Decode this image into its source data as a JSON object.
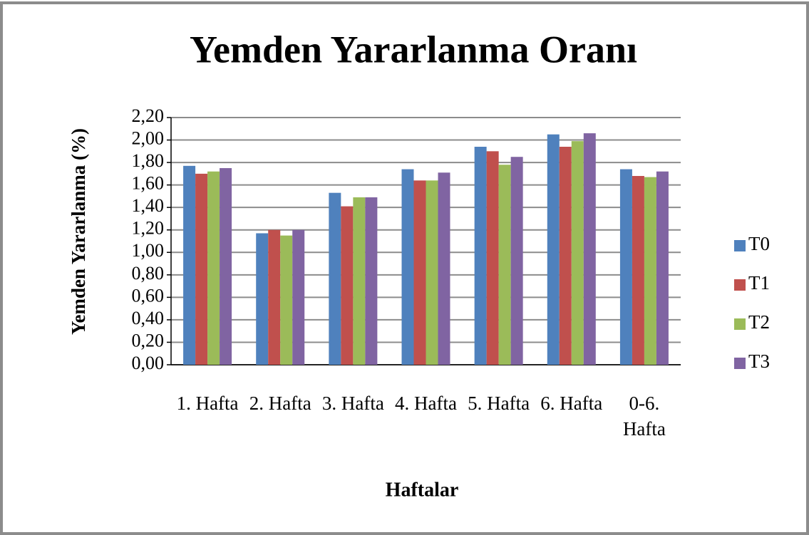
{
  "chart_data": {
    "type": "bar",
    "title": "Yemden Yararlanma Oranı",
    "x_label": "Haftalar",
    "y_label": "Yemden Yararlanma (%)",
    "categories": [
      "1. Hafta",
      "2. Hafta",
      "3. Hafta",
      "4. Hafta",
      "5. Hafta",
      "6. Hafta",
      "0-6. Hafta"
    ],
    "series": [
      {
        "name": "T0",
        "color": "#4f81bd",
        "values": [
          1.77,
          1.17,
          1.53,
          1.74,
          1.94,
          2.05,
          1.74
        ]
      },
      {
        "name": "T1",
        "color": "#c0504d",
        "values": [
          1.7,
          1.2,
          1.41,
          1.64,
          1.9,
          1.94,
          1.68
        ]
      },
      {
        "name": "T2",
        "color": "#9bbb59",
        "values": [
          1.72,
          1.15,
          1.49,
          1.64,
          1.78,
          1.99,
          1.67
        ]
      },
      {
        "name": "T3",
        "color": "#8064a2",
        "values": [
          1.75,
          1.2,
          1.49,
          1.71,
          1.85,
          2.06,
          1.72
        ]
      }
    ],
    "ylim": [
      0,
      2.2
    ],
    "yticks": [
      {
        "value": 0,
        "label": "0,00"
      },
      {
        "value": 0.2,
        "label": "0,20"
      },
      {
        "value": 0.4,
        "label": "0,40"
      },
      {
        "value": 0.6,
        "label": "0,60"
      },
      {
        "value": 0.8,
        "label": "0,80"
      },
      {
        "value": 1.0,
        "label": "1,00"
      },
      {
        "value": 1.2,
        "label": "1,20"
      },
      {
        "value": 1.4,
        "label": "1,40"
      },
      {
        "value": 1.6,
        "label": "1,60"
      },
      {
        "value": 1.8,
        "label": "1,80"
      },
      {
        "value": 2.0,
        "label": "2,00"
      },
      {
        "value": 2.2,
        "label": "2,20"
      }
    ],
    "grid": true,
    "legend": "right"
  }
}
